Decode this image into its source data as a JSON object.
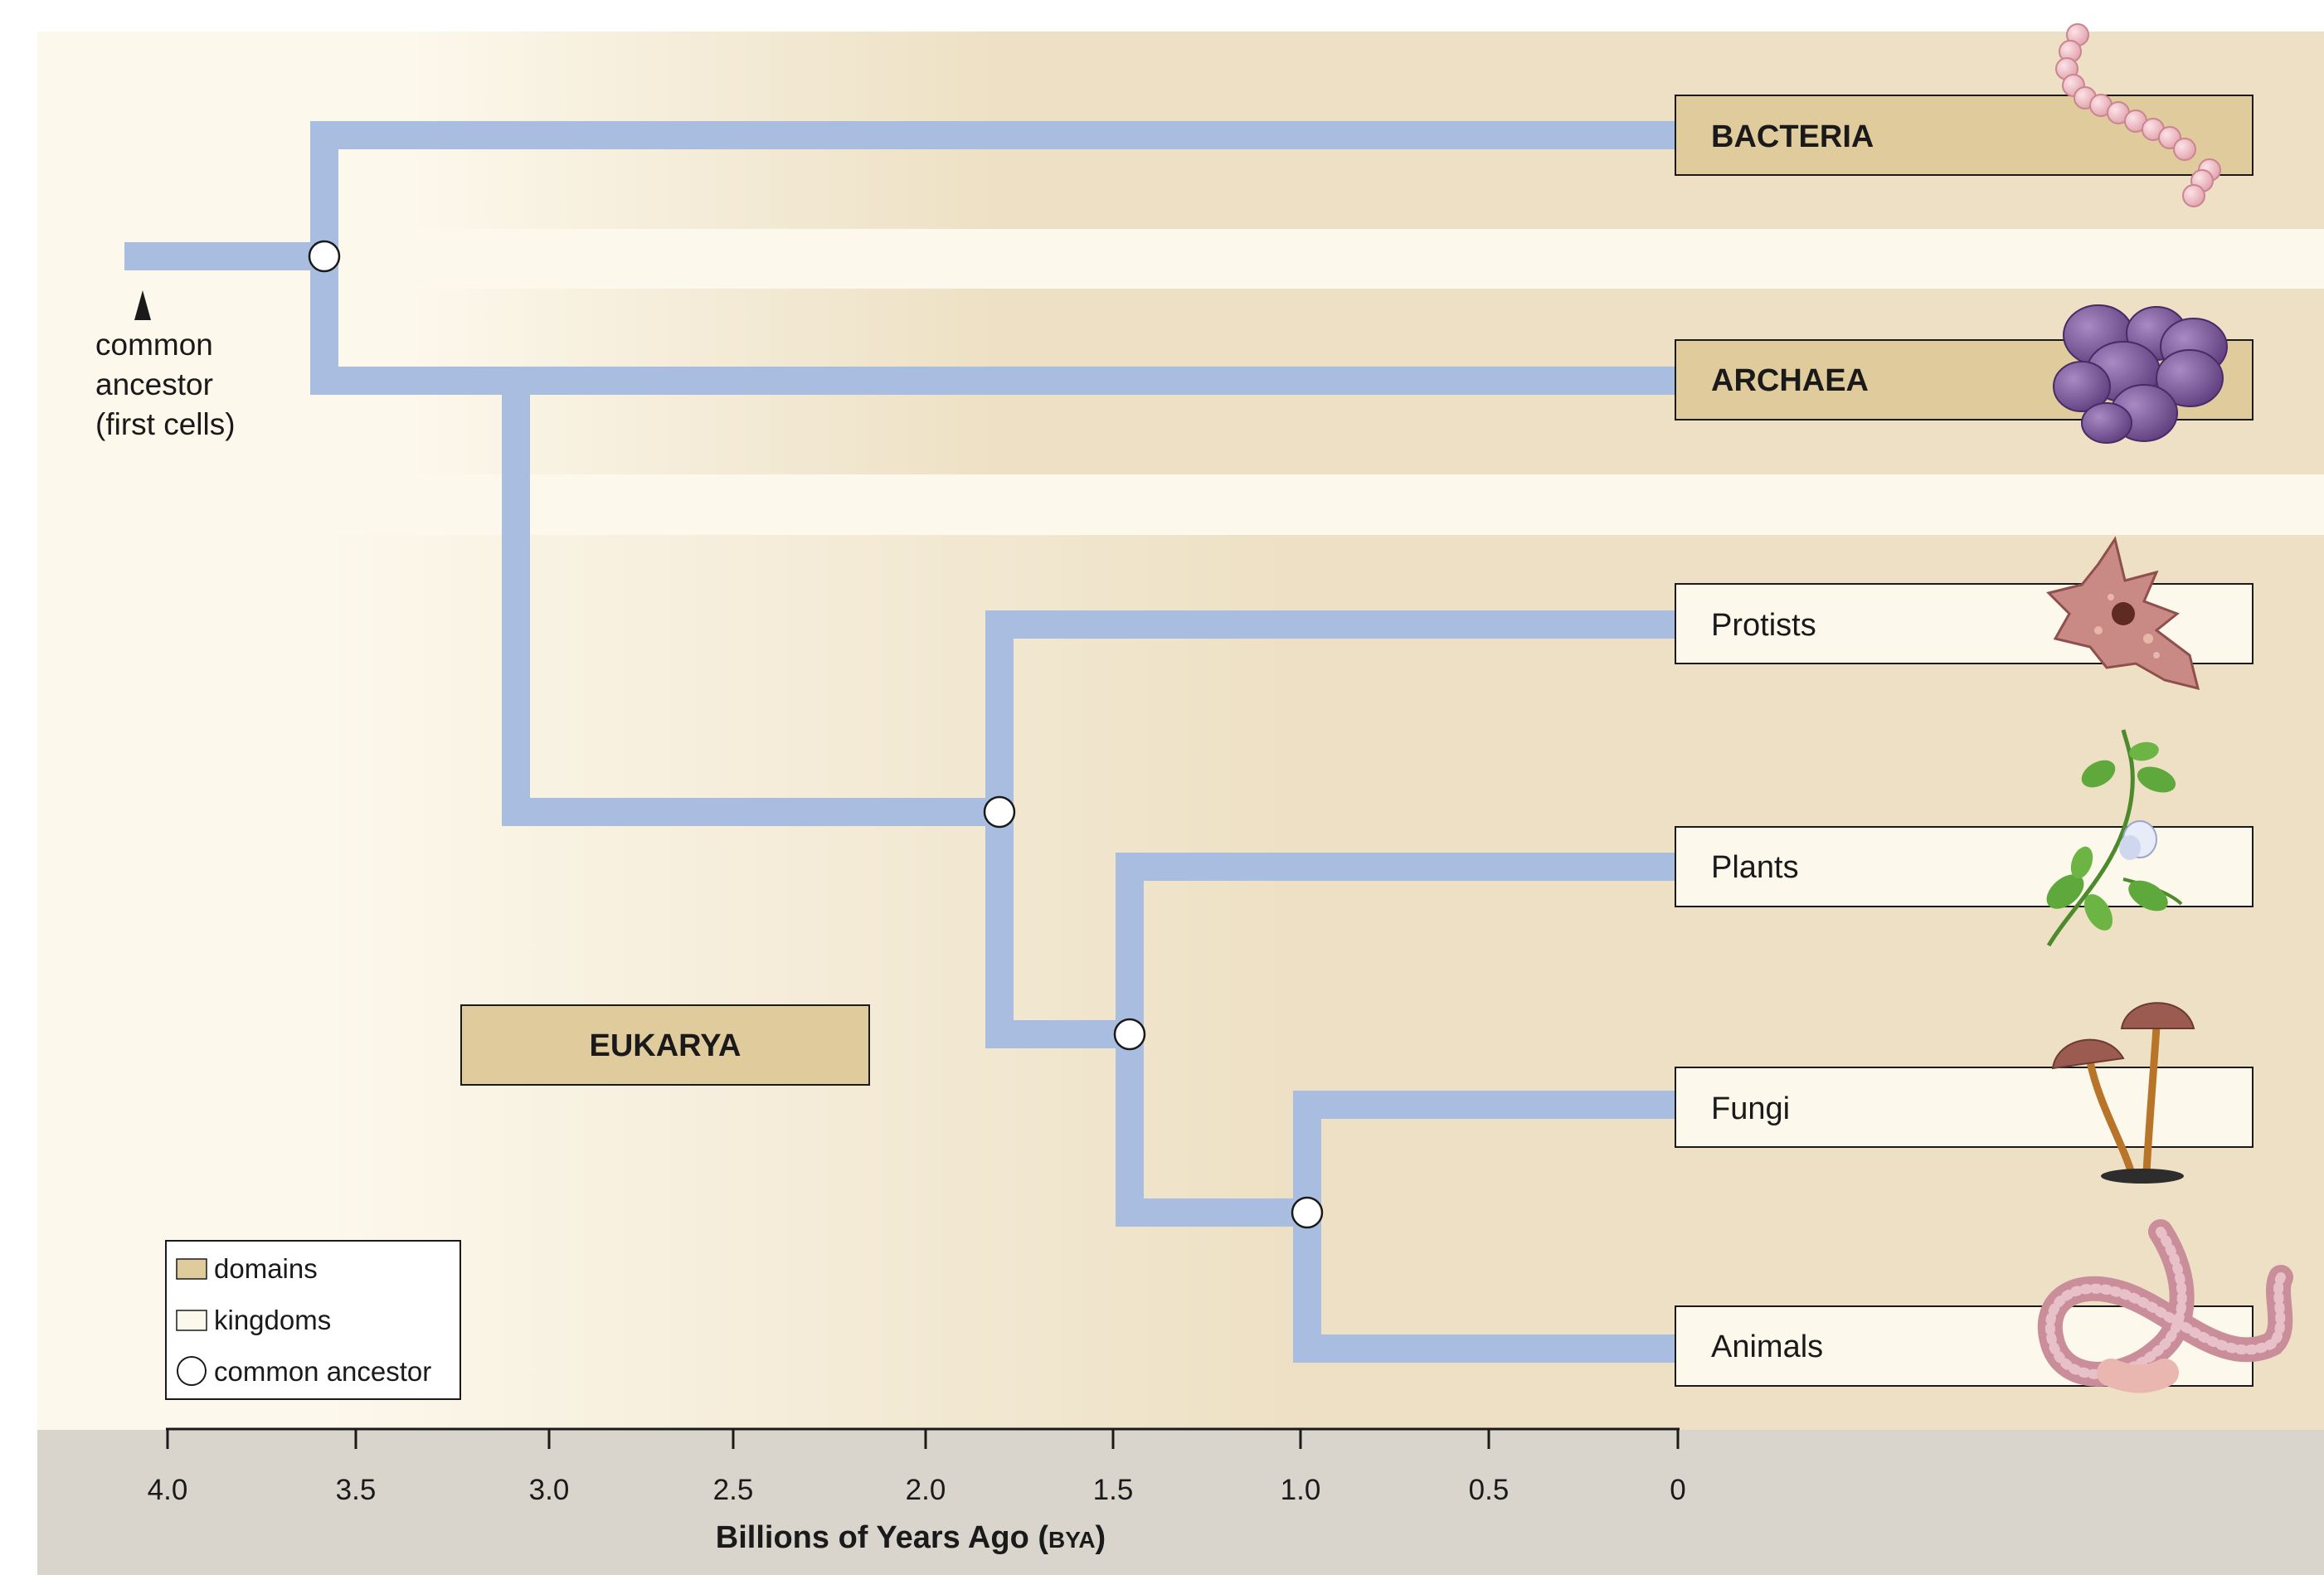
{
  "labels": {
    "bacteria": "BACTERIA",
    "archaea": "ARCHAEA",
    "eukarya": "EUKARYA",
    "protists": "Protists",
    "plants": "Plants",
    "fungi": "Fungi",
    "animals": "Animals",
    "common_ancestor": [
      "common",
      "ancestor",
      "(first cells)"
    ]
  },
  "legend": {
    "domains": "domains",
    "kingdoms": "kingdoms",
    "common_ancestor": "common ancestor"
  },
  "axis": {
    "title_main": "Billions of Years Ago (",
    "title_abbr": "BYA",
    "title_end": ")",
    "ticks": [
      "4.0",
      "3.5",
      "3.0",
      "2.5",
      "2.0",
      "1.5",
      "1.0",
      "0.5",
      "0"
    ]
  },
  "colors": {
    "branch": "#a8bde0",
    "domain_fill": "#e0cb9c",
    "kingdom_fill": "#fcf8ec",
    "band": "#ede0c4",
    "light_band": "#fcf8ec",
    "axis_bar": "#d9d5cc",
    "ink": "#1a1a1a"
  },
  "icons": {
    "bacteria": "bacteria-chain-icon",
    "archaea": "archaea-cluster-icon",
    "protists": "amoeba-icon",
    "plants": "pea-plant-icon",
    "fungi": "mushroom-icon",
    "animals": "earthworm-icon"
  }
}
